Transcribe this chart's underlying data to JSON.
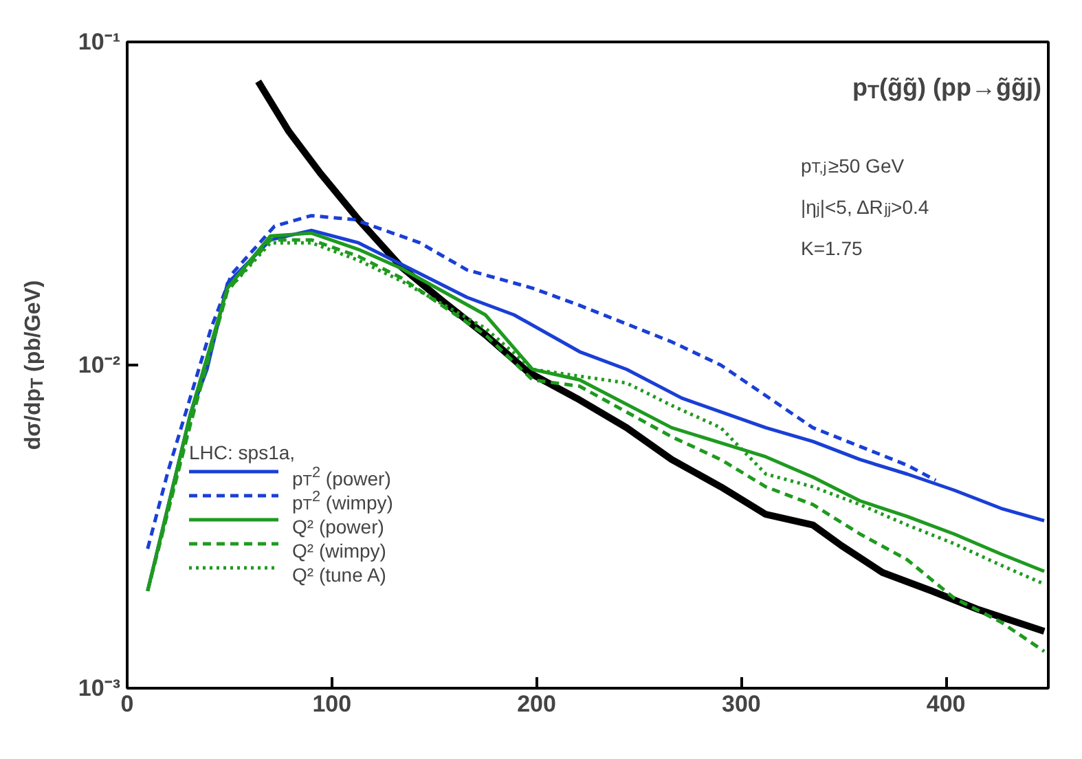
{
  "chart_data": {
    "type": "line",
    "ylabel": "dσ/dp$_{T}$ (pb/GeV)",
    "legend_title": "LHC: sps1a,",
    "legend": "bottom left",
    "log": "y",
    "grid": false,
    "xlim": [
      0,
      450
    ],
    "xticks": [
      0,
      100,
      200,
      300,
      400
    ],
    "ylim": [
      0.001,
      0.1
    ],
    "yticks": [
      {
        "value": 0.001,
        "label": "10⁻³"
      },
      {
        "value": 0.01,
        "label": "10⁻²"
      },
      {
        "value": 0.1,
        "label": "10⁻¹"
      }
    ],
    "annotations": [
      "p$_{T}$(g̃g̃) (pp→g̃g̃j)",
      "p$_{T,j}$≥50 GeV",
      "|η$_{j}$|<5, ΔR$_{jj}$>0.4",
      "K=1.75"
    ],
    "series": [
      {
        "color": "#000000",
        "line_style": "solid",
        "x": [
          64,
          79,
          94,
          113,
          134,
          154,
          175,
          196,
          221,
          244,
          266,
          290,
          312,
          335,
          349,
          369,
          393,
          416,
          448
        ],
        "values": [
          0.0755,
          0.0528,
          0.0395,
          0.0282,
          0.0201,
          0.0158,
          0.0124,
          0.0095,
          0.0078,
          0.0064,
          0.0051,
          0.0042,
          0.00345,
          0.0032,
          0.00276,
          0.00228,
          0.002,
          0.00175,
          0.0015
        ]
      },
      {
        "name": "p$_{T}$$^{2}$ (power)",
        "color": "#1a3fd6",
        "line_style": "solid",
        "x": [
          10,
          31,
          39,
          49,
          70,
          90,
          113,
          134,
          166,
          189,
          221,
          244,
          271,
          312,
          335,
          358,
          381,
          404,
          427,
          448
        ],
        "values": [
          0.002,
          0.0071,
          0.0097,
          0.0179,
          0.0244,
          0.0261,
          0.0239,
          0.0205,
          0.0162,
          0.0143,
          0.011,
          0.0097,
          0.0079,
          0.0064,
          0.0058,
          0.0051,
          0.0046,
          0.0041,
          0.0036,
          0.0033
        ]
      },
      {
        "name": "p$_{T}$$^{2}$ (wimpy)",
        "color": "#1a3fd6",
        "line_style": "dashed",
        "x": [
          10,
          20,
          31,
          41,
          51,
          72,
          90,
          111,
          143,
          166,
          198,
          221,
          244,
          266,
          290,
          335,
          358,
          381,
          395
        ],
        "values": [
          0.0027,
          0.0047,
          0.008,
          0.013,
          0.0191,
          0.0269,
          0.029,
          0.0282,
          0.0239,
          0.0197,
          0.0173,
          0.0153,
          0.0134,
          0.0118,
          0.01,
          0.0064,
          0.0056,
          0.0049,
          0.0044
        ]
      },
      {
        "name": "Q² (power)",
        "color": "#1f9a1f",
        "line_style": "solid",
        "x": [
          10,
          31,
          49,
          70,
          90,
          113,
          134,
          175,
          198,
          221,
          266,
          312,
          335,
          358,
          381,
          404,
          427,
          448
        ],
        "values": [
          0.002,
          0.0071,
          0.0173,
          0.0251,
          0.0256,
          0.0228,
          0.0199,
          0.0143,
          0.0097,
          0.009,
          0.0064,
          0.0052,
          0.0045,
          0.0038,
          0.0034,
          0.003,
          0.0026,
          0.0023
        ]
      },
      {
        "name": "Q² (wimpy)",
        "color": "#1f9a1f",
        "line_style": "dashed",
        "x": [
          10,
          31,
          49,
          70,
          90,
          113,
          134,
          175,
          198,
          221,
          266,
          290,
          312,
          335,
          358,
          381,
          404,
          427,
          448
        ],
        "values": [
          0.002,
          0.0066,
          0.017,
          0.0244,
          0.0244,
          0.0217,
          0.0186,
          0.0124,
          0.009,
          0.0086,
          0.006,
          0.0051,
          0.0042,
          0.0037,
          0.003,
          0.0025,
          0.0019,
          0.0016,
          0.0013
        ]
      },
      {
        "name": "Q² (tune A)",
        "color": "#1f9a1f",
        "line_style": "dotted",
        "x": [
          10,
          31,
          49,
          70,
          90,
          113,
          134,
          175,
          198,
          244,
          266,
          290,
          312,
          335,
          358,
          381,
          404,
          427,
          448
        ],
        "values": [
          0.002,
          0.0067,
          0.017,
          0.0239,
          0.0239,
          0.0211,
          0.0182,
          0.013,
          0.0097,
          0.0088,
          0.0075,
          0.0064,
          0.0046,
          0.0042,
          0.0037,
          0.0032,
          0.0028,
          0.0024,
          0.0021
        ]
      }
    ]
  }
}
